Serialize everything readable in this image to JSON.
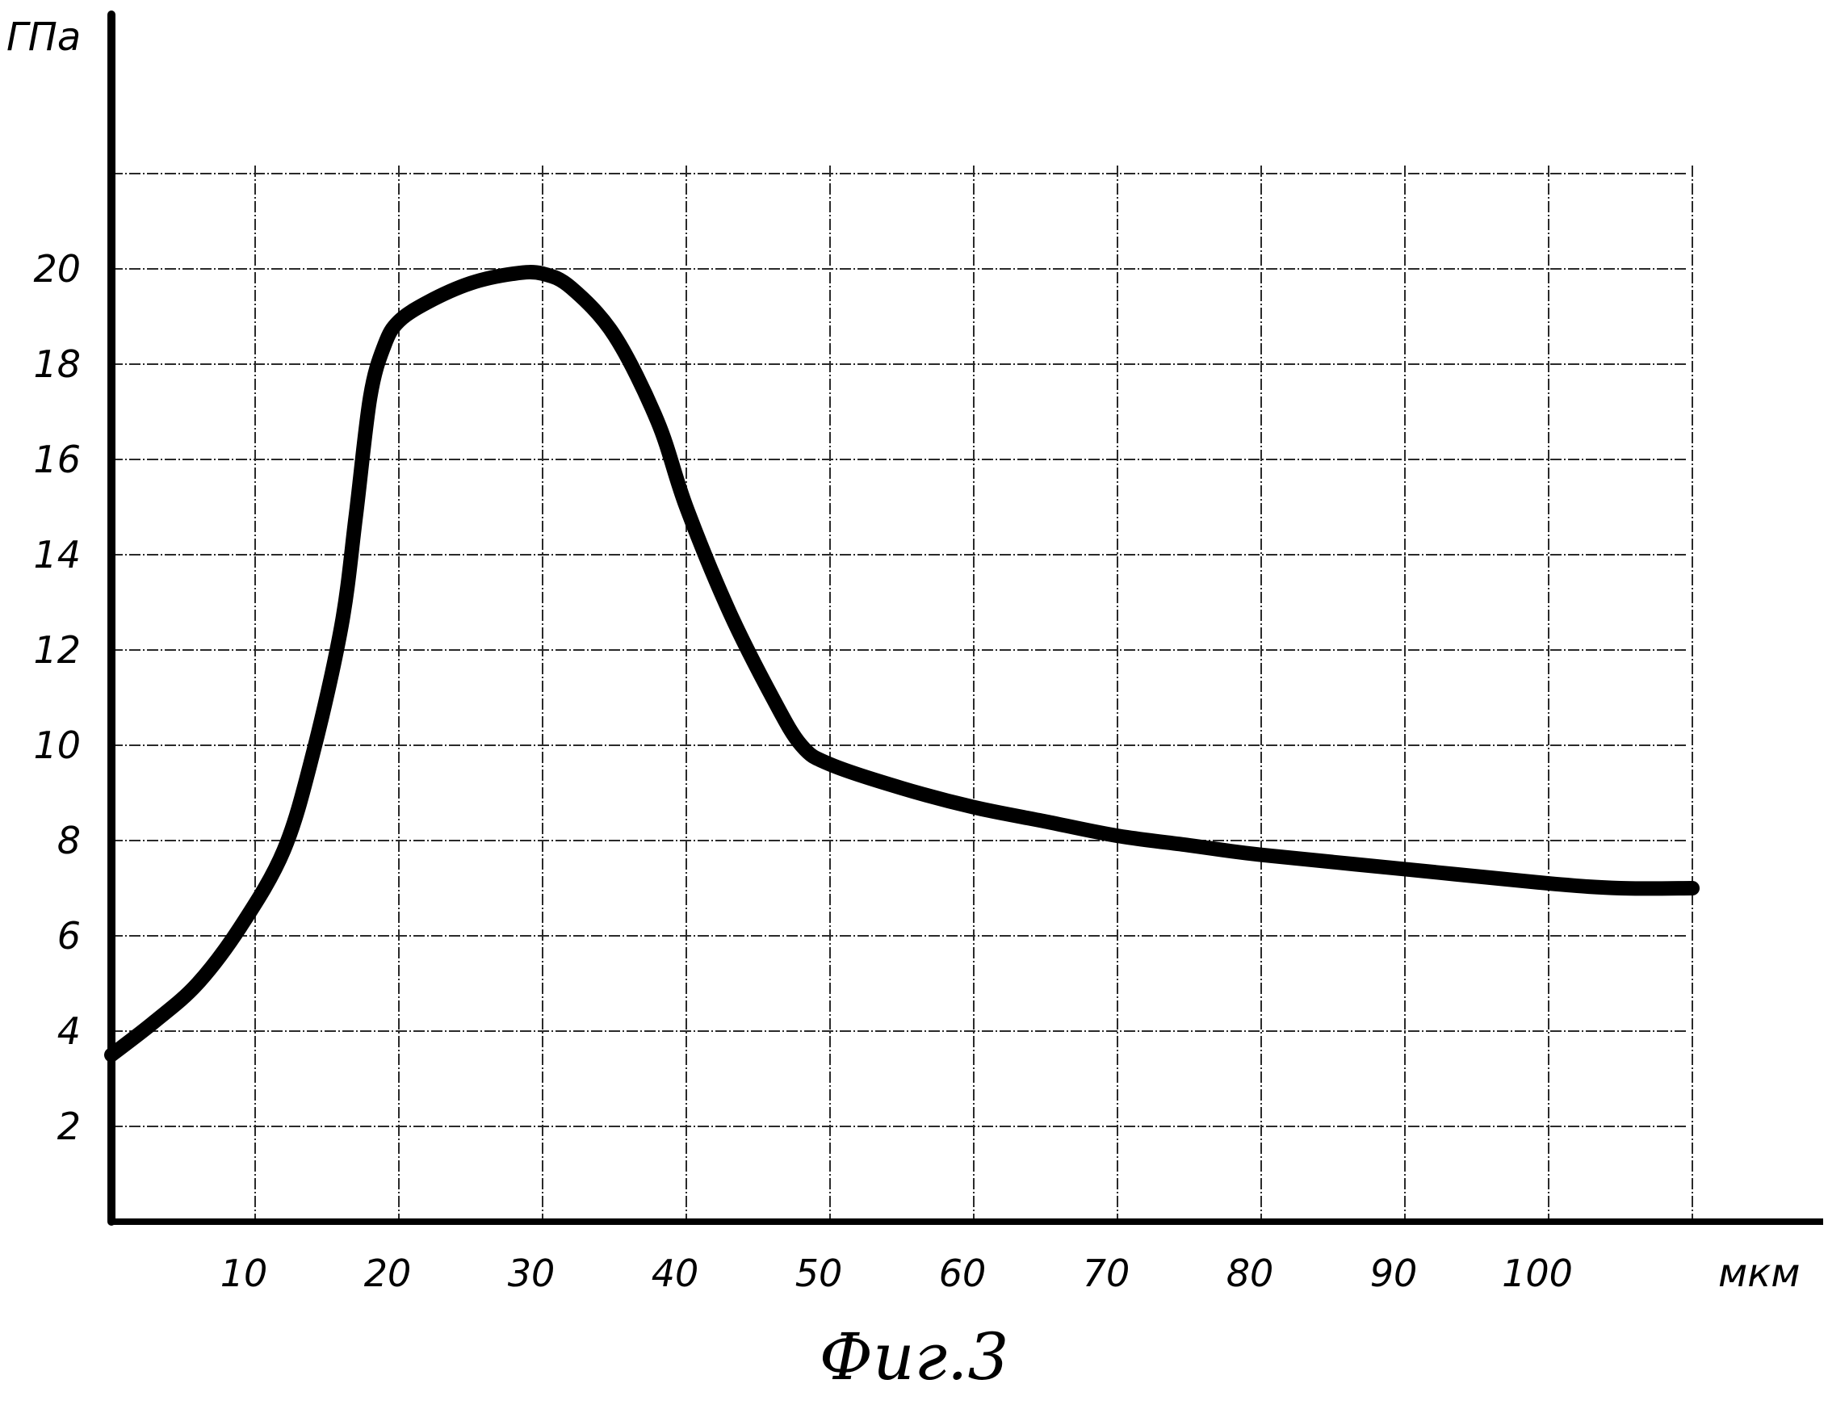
{
  "chart_data": {
    "type": "line",
    "caption": "Фиг.3",
    "xlabel": "мкм",
    "ylabel": "ГПа",
    "xlim": [
      0,
      110
    ],
    "ylim": [
      0,
      22
    ],
    "grid": true,
    "legend": "none",
    "x_ticks": [
      "10",
      "20",
      "30",
      "40",
      "50",
      "60",
      "70",
      "80",
      "90",
      "100"
    ],
    "y_ticks": [
      "2",
      "4",
      "6",
      "8",
      "10",
      "12",
      "14",
      "16",
      "18",
      "20"
    ],
    "series": [
      {
        "x": [
          0,
          3,
          6,
          9,
          12,
          14,
          16,
          17,
          18,
          19,
          20,
          22,
          25,
          28,
          30,
          32,
          35,
          38,
          40,
          43,
          46,
          48,
          50,
          55,
          60,
          65,
          70,
          75,
          80,
          90,
          100,
          105,
          110
        ],
        "values": [
          3.5,
          4.2,
          5.0,
          6.2,
          7.8,
          9.8,
          12.5,
          14.8,
          17.3,
          18.4,
          18.9,
          19.3,
          19.7,
          19.9,
          19.9,
          19.6,
          18.6,
          16.8,
          15.0,
          12.8,
          11.0,
          10.0,
          9.6,
          9.1,
          8.7,
          8.4,
          8.1,
          7.9,
          7.7,
          7.4,
          7.1,
          7.0,
          7.0
        ]
      }
    ]
  }
}
